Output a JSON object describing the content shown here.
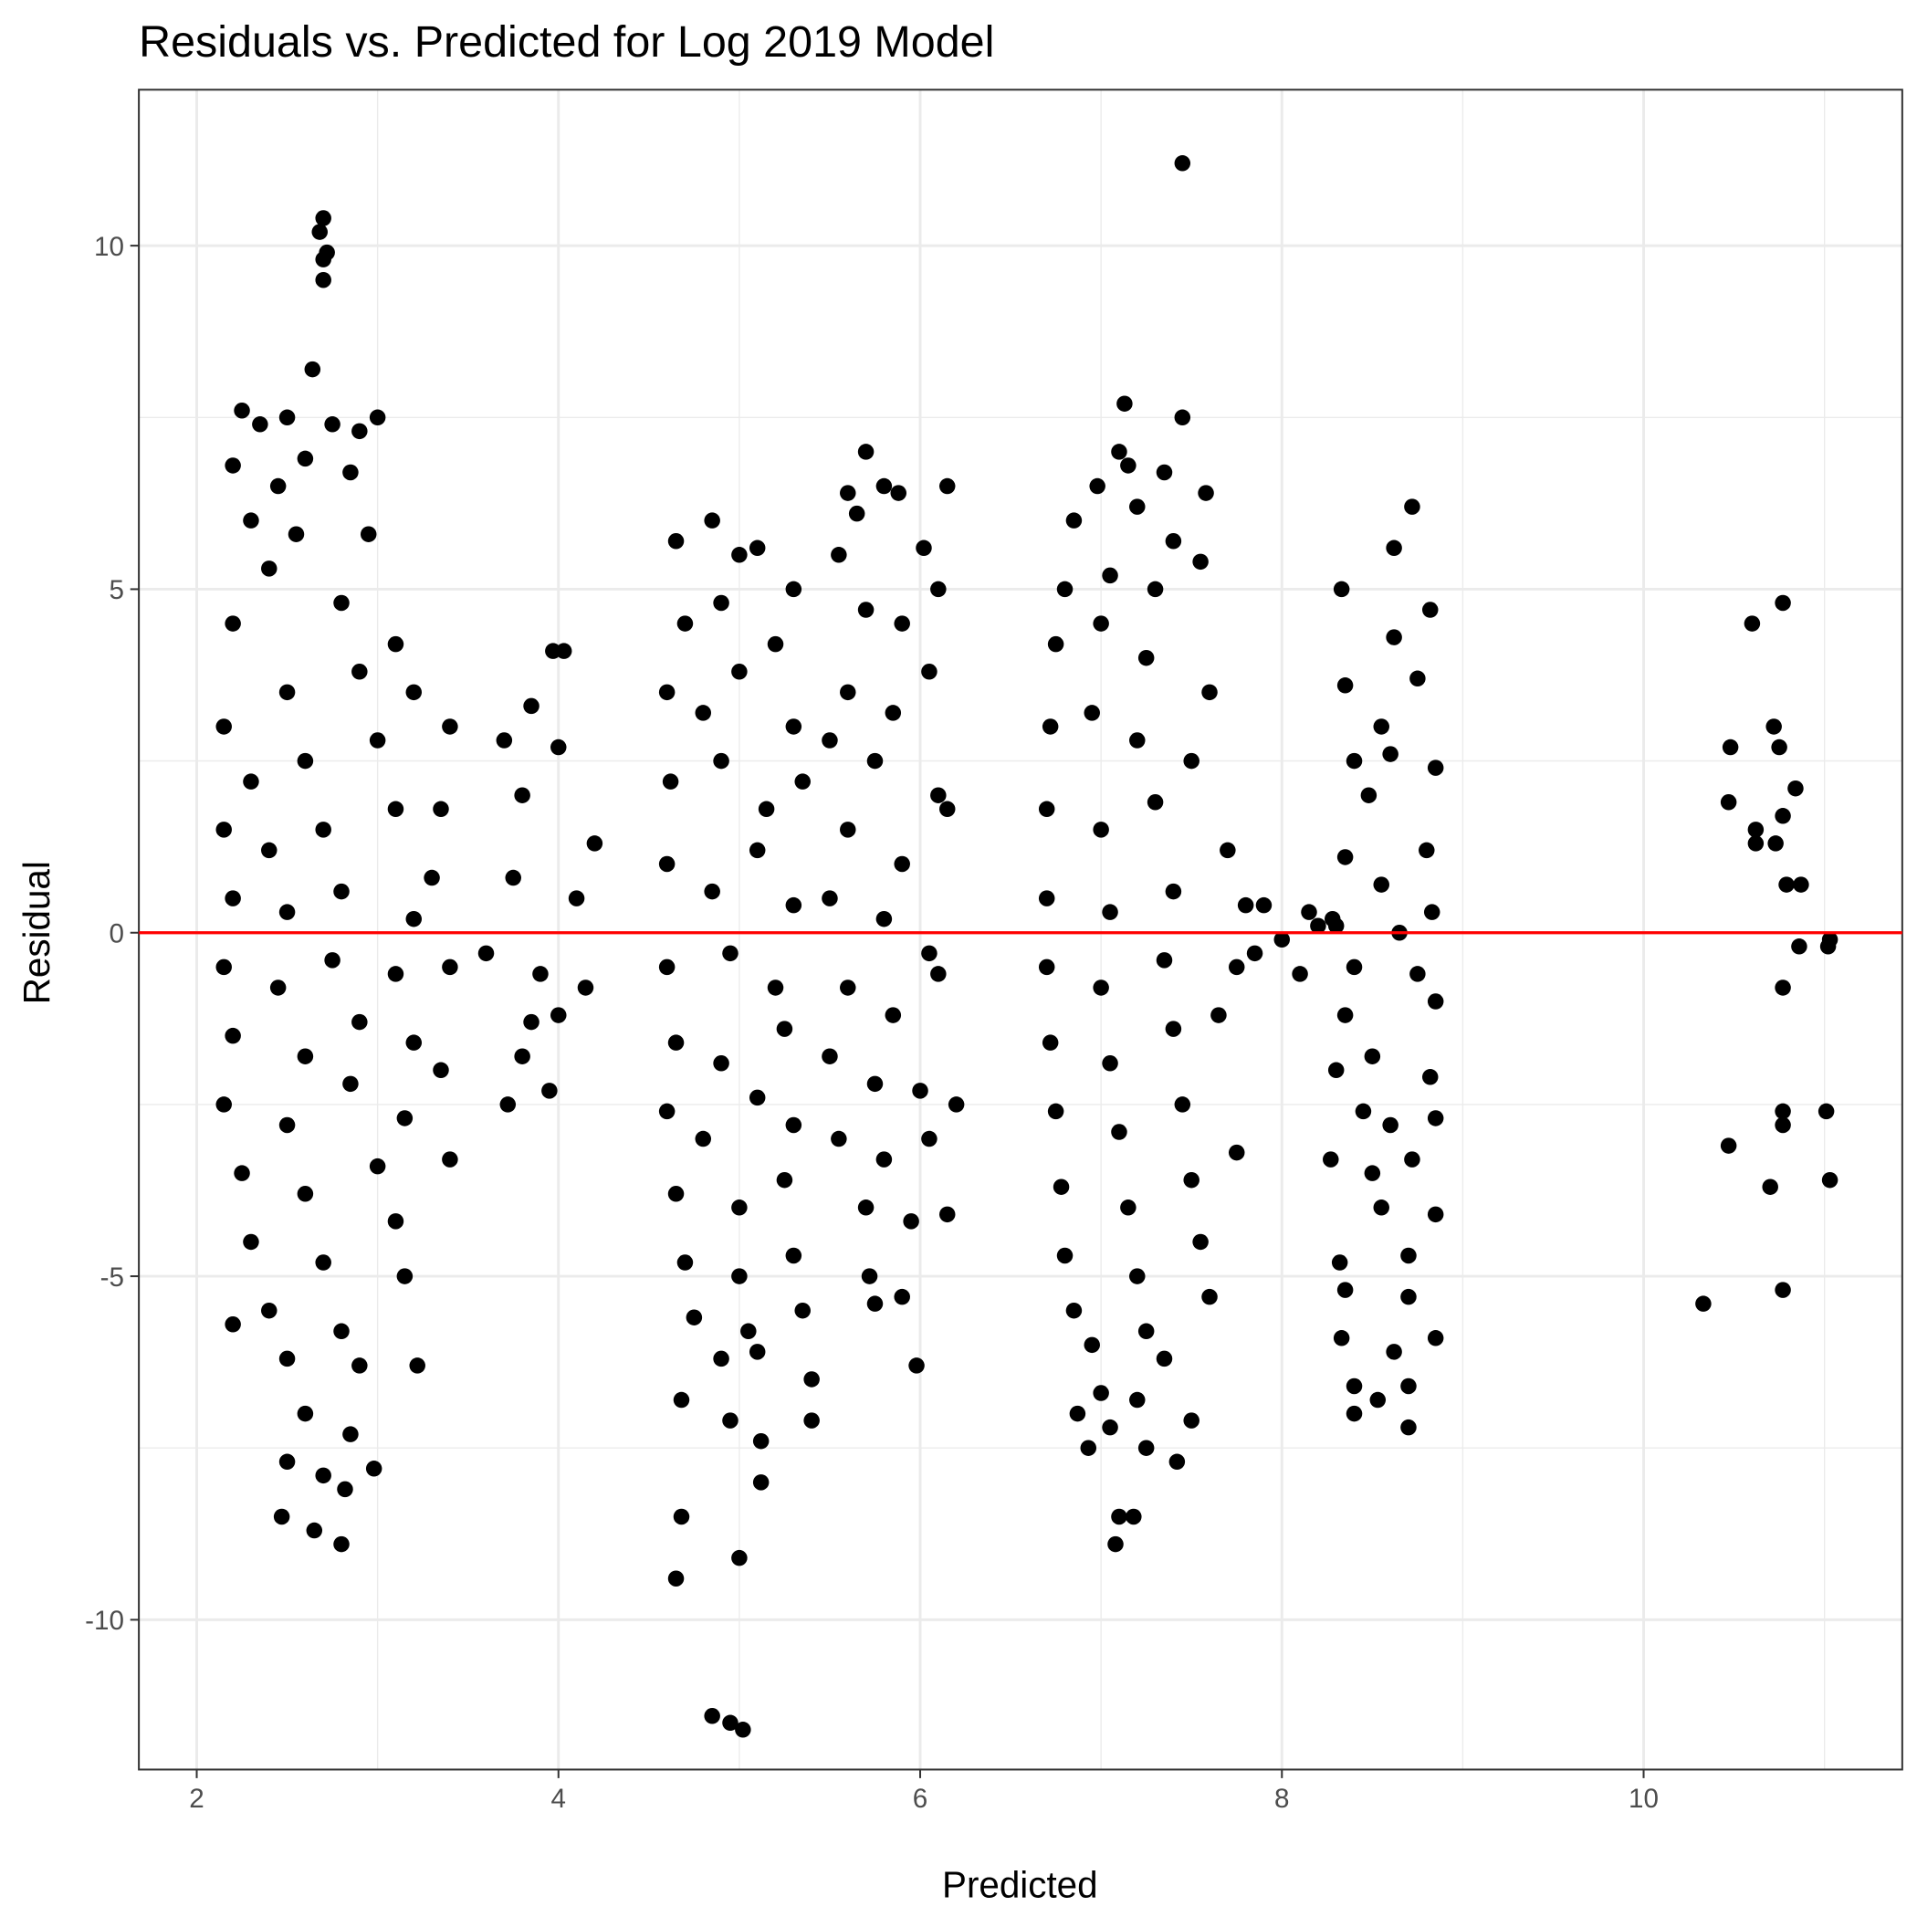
{
  "chart_data": {
    "type": "scatter",
    "title": "Residuals vs. Predicted for Log 2019 Model",
    "x_label": "Predicted",
    "y_label": "Residual",
    "xlim": [
      1.68,
      11.43
    ],
    "ylim": [
      -12.18,
      12.27
    ],
    "xticks": [
      2,
      4,
      6,
      8,
      10
    ],
    "yticks": [
      -10,
      -5,
      0,
      5,
      10
    ],
    "grid": true,
    "color": "#000000",
    "hline": 0,
    "hline_color": "#ff0000",
    "x": [
      2.7,
      2.68,
      2.72,
      2.7,
      2.7,
      2.64,
      2.25,
      2.35,
      2.5,
      2.75,
      3.0,
      2.9,
      2.6,
      2.2,
      2.45,
      2.85,
      2.3,
      2.55,
      2.95,
      2.4,
      2.2,
      2.8,
      3.1,
      2.15,
      2.5,
      2.9,
      3.2,
      2.3,
      2.6,
      3.0,
      2.15,
      2.4,
      2.7,
      3.1,
      2.2,
      2.5,
      2.8,
      3.2,
      2.15,
      2.45,
      2.75,
      3.1,
      2.2,
      2.6,
      2.9,
      3.2,
      2.15,
      2.5,
      2.85,
      3.15,
      2.25,
      2.6,
      3.0,
      2.3,
      2.7,
      3.1,
      2.4,
      2.8,
      3.15,
      2.2,
      2.5,
      2.9,
      2.6,
      2.85,
      2.5,
      2.7,
      2.98,
      2.82,
      2.47,
      2.65,
      2.8,
      3.22,
      3.4,
      3.35,
      3.4,
      3.35,
      3.4,
      3.3,
      3.7,
      3.85,
      3.97,
      4.03,
      4.0,
      3.8,
      4.2,
      3.75,
      4.1,
      3.6,
      3.9,
      4.15,
      3.85,
      4.0,
      3.72,
      3.95,
      3.8,
      4.65,
      4.85,
      5.0,
      5.1,
      5.3,
      4.7,
      4.9,
      5.2,
      4.6,
      4.8,
      5.0,
      5.3,
      4.62,
      4.9,
      5.15,
      5.35,
      4.6,
      4.85,
      5.1,
      5.3,
      4.6,
      4.95,
      5.2,
      4.65,
      4.9,
      5.25,
      4.6,
      4.8,
      5.1,
      5.3,
      4.65,
      5.0,
      5.25,
      4.7,
      5.0,
      5.3,
      4.75,
      5.05,
      5.35,
      4.9,
      5.1,
      4.68,
      4.95,
      5.4,
      5.4,
      5.12,
      5.12,
      4.68,
      4.65,
      5.0,
      4.85,
      4.95,
      5.02,
      5.7,
      5.6,
      5.8,
      6.15,
      5.65,
      5.88,
      6.02,
      5.55,
      5.7,
      5.9,
      6.1,
      5.6,
      5.85,
      6.05,
      5.5,
      5.75,
      6.1,
      5.6,
      5.9,
      6.15,
      5.5,
      5.8,
      6.05,
      5.6,
      5.85,
      6.1,
      5.5,
      5.75,
      6.0,
      6.2,
      5.55,
      5.8,
      6.05,
      5.7,
      5.95,
      6.15,
      5.72,
      5.9,
      5.98,
      5.75,
      6.85,
      6.98,
      7.13,
      7.1,
      7.15,
      7.35,
      7.45,
      7.45,
      7.2,
      7.4,
      7.58,
      6.8,
      7.05,
      7.3,
      7.55,
      6.75,
      7.0,
      7.25,
      7.6,
      6.72,
      6.95,
      7.2,
      7.5,
      6.7,
      7.0,
      7.3,
      7.7,
      6.7,
      7.05,
      7.4,
      7.8,
      6.7,
      7.0,
      7.35,
      7.75,
      6.72,
      7.05,
      7.4,
      7.65,
      6.75,
      7.1,
      7.45,
      7.75,
      6.78,
      7.15,
      7.5,
      6.8,
      7.2,
      7.55,
      6.85,
      7.25,
      7.6,
      6.95,
      7.35,
      7.0,
      7.2,
      6.87,
      7.05,
      6.93,
      7.25,
      7.5,
      7.42,
      7.1,
      7.18,
      7.08,
      7.9,
      8.0,
      8.1,
      8.15,
      8.2,
      8.28,
      7.85,
      8.33,
      8.62,
      8.72,
      8.62,
      8.82,
      8.35,
      8.55,
      8.75,
      8.4,
      8.6,
      8.85,
      8.48,
      8.35,
      8.55,
      8.8,
      8.3,
      8.65,
      8.83,
      8.4,
      8.75,
      8.35,
      8.85,
      8.3,
      8.5,
      8.82,
      8.45,
      8.6,
      8.85,
      8.27,
      8.5,
      8.72,
      8.55,
      8.85,
      8.32,
      8.7,
      8.35,
      8.7,
      8.33,
      8.62,
      8.85,
      8.4,
      8.7,
      8.4,
      8.7,
      8.53,
      10.48,
      10.6,
      10.77,
      10.72,
      10.75,
      10.47,
      10.62,
      10.62,
      10.73,
      10.77,
      10.84,
      10.79,
      10.87,
      10.86,
      11.03,
      11.02,
      10.77,
      10.77,
      10.77,
      11.01,
      10.47,
      10.7,
      11.03,
      10.33,
      10.77
    ],
    "values": [
      10.4,
      10.2,
      9.9,
      9.8,
      9.5,
      8.2,
      7.6,
      7.4,
      7.5,
      7.4,
      7.5,
      7.3,
      6.9,
      6.8,
      6.5,
      6.7,
      6.0,
      5.8,
      5.8,
      5.3,
      4.5,
      4.8,
      4.2,
      3.0,
      3.5,
      3.8,
      3.5,
      2.2,
      2.5,
      2.8,
      1.5,
      1.2,
      1.5,
      1.8,
      0.5,
      0.3,
      0.6,
      0.2,
      -0.5,
      -0.8,
      -0.4,
      -0.6,
      -1.5,
      -1.8,
      -1.3,
      -1.6,
      -2.5,
      -2.8,
      -2.2,
      -2.7,
      -3.5,
      -3.8,
      -3.4,
      -4.5,
      -4.8,
      -4.2,
      -5.5,
      -5.8,
      -5.0,
      -5.7,
      -6.2,
      -6.3,
      -7.0,
      -7.3,
      -7.7,
      -7.9,
      -7.8,
      -8.1,
      -8.5,
      -8.7,
      -8.9,
      -6.3,
      -3.3,
      -2.0,
      3.0,
      1.8,
      -0.5,
      0.8,
      2.8,
      3.3,
      4.1,
      4.1,
      2.7,
      2.0,
      1.3,
      0.8,
      0.5,
      -0.3,
      -0.6,
      -0.8,
      -1.3,
      -1.2,
      -2.5,
      -2.3,
      -1.8,
      5.7,
      6.0,
      5.5,
      5.6,
      5.0,
      4.5,
      4.8,
      4.2,
      3.5,
      3.2,
      3.8,
      3.0,
      2.2,
      2.5,
      1.8,
      2.2,
      1.0,
      0.6,
      1.2,
      0.4,
      -0.5,
      -0.3,
      -0.8,
      -1.6,
      -1.9,
      -1.4,
      -2.6,
      -3.0,
      -2.4,
      -2.8,
      -3.8,
      -4.0,
      -3.6,
      -4.8,
      -5.0,
      -4.7,
      -5.6,
      -5.8,
      -5.5,
      -6.2,
      -6.1,
      -6.8,
      -7.1,
      -6.5,
      -7.1,
      -7.4,
      -8.0,
      -8.5,
      -9.4,
      -9.1,
      -11.4,
      -11.5,
      -11.6,
      7.0,
      6.4,
      6.5,
      6.5,
      6.1,
      6.4,
      5.6,
      5.5,
      4.7,
      4.5,
      5.0,
      3.5,
      3.2,
      3.8,
      2.8,
      2.5,
      2.0,
      1.5,
      1.0,
      1.8,
      0.5,
      0.2,
      -0.3,
      -0.8,
      -1.2,
      -0.6,
      -1.8,
      -2.2,
      -2.3,
      -2.5,
      -3.0,
      -3.3,
      -3.0,
      -4.0,
      -4.2,
      -4.1,
      -5.0,
      -5.3,
      -6.3,
      -5.4,
      6.0,
      6.5,
      7.7,
      7.0,
      6.8,
      6.7,
      7.5,
      11.2,
      6.2,
      5.7,
      6.4,
      5.0,
      5.2,
      5.0,
      5.4,
      4.2,
      4.5,
      4.0,
      3.5,
      3.0,
      3.2,
      2.8,
      2.5,
      1.8,
      1.5,
      1.9,
      1.2,
      0.5,
      0.3,
      0.6,
      0.4,
      -0.5,
      -0.8,
      -0.4,
      -0.5,
      -1.6,
      -1.9,
      -1.4,
      -1.2,
      -2.6,
      -2.9,
      -2.5,
      -3.2,
      -3.7,
      -4.0,
      -3.6,
      -4.7,
      -5.0,
      -4.5,
      -5.5,
      -5.8,
      -5.3,
      -6.0,
      -6.2,
      -6.7,
      -6.8,
      -7.0,
      -7.2,
      -7.5,
      -7.5,
      -7.1,
      -7.7,
      -8.5,
      -8.5,
      -8.9,
      0.4,
      -0.1,
      -0.6,
      0.3,
      0.1,
      0.2,
      -0.3,
      5.0,
      5.6,
      6.2,
      4.3,
      4.7,
      3.6,
      3.0,
      3.7,
      2.5,
      2.6,
      2.4,
      2.0,
      1.1,
      0.7,
      1.2,
      0.1,
      0.0,
      0.3,
      -0.5,
      -0.6,
      -1.2,
      -1.0,
      -2.0,
      -1.8,
      -2.1,
      -2.6,
      -2.8,
      -2.7,
      -3.3,
      -3.5,
      -3.3,
      -4.0,
      -4.1,
      -4.8,
      -4.7,
      -5.2,
      -5.3,
      -5.9,
      -6.1,
      -5.9,
      -6.6,
      -6.6,
      -7.0,
      -7.2,
      -6.8,
      2.7,
      4.5,
      4.8,
      3.0,
      2.7,
      1.9,
      1.5,
      1.3,
      1.3,
      1.7,
      2.1,
      0.7,
      0.7,
      -0.2,
      -0.1,
      -0.2,
      -0.8,
      -2.6,
      -2.8,
      -2.6,
      -3.1,
      -3.7,
      -3.6,
      -5.4,
      -5.2
    ]
  }
}
